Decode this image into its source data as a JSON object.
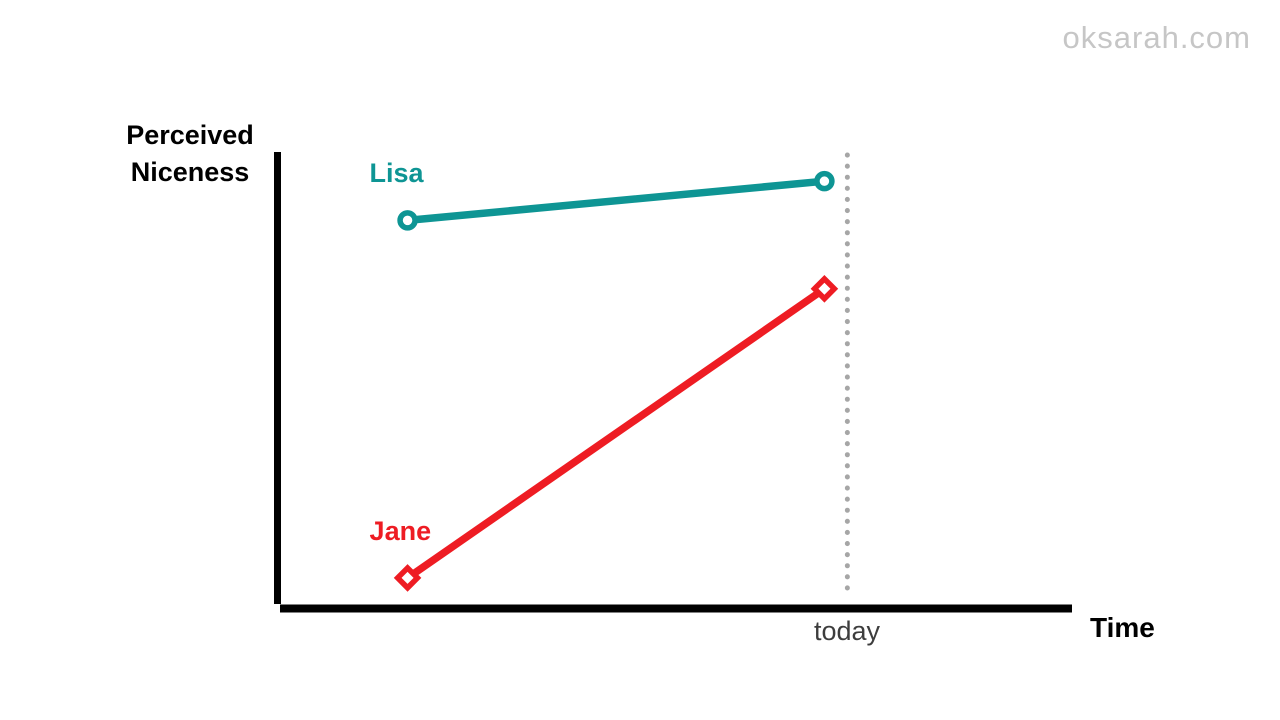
{
  "watermark": "oksarah.com",
  "colors": {
    "axis": "#000000",
    "lisa": "#0e9594",
    "jane": "#ee1c23",
    "dotted_line": "#a6a6a6",
    "today_text": "#3d3d3d",
    "watermark_text": "#c6c6c6",
    "marker_fill": "#ffffff"
  },
  "chart_data": {
    "type": "line",
    "title": "",
    "ylabel": "Perceived Niceness",
    "xlabel": "Time",
    "x_tick_labels": [
      "today"
    ],
    "grid": false,
    "legend": "inline-series-labels",
    "xlim": [
      0,
      1
    ],
    "ylim": [
      0,
      1
    ],
    "values_are_relative": true,
    "series": [
      {
        "name": "Lisa",
        "color": "#0e9594",
        "marker": "circle",
        "points": [
          [
            0.16,
            0.85
          ],
          [
            0.687,
            0.936
          ]
        ]
      },
      {
        "name": "Jane",
        "color": "#ee1c23",
        "marker": "diamond",
        "points": [
          [
            0.16,
            0.066
          ],
          [
            0.687,
            0.7
          ]
        ]
      }
    ],
    "annotations": [
      {
        "type": "vline",
        "style": "dotted",
        "x": 0.716,
        "label": "today",
        "color": "#a6a6a6"
      }
    ]
  }
}
